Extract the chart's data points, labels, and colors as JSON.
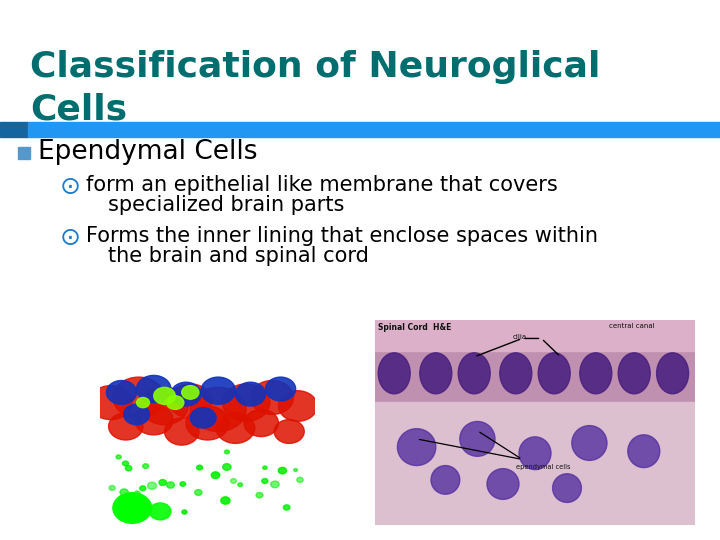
{
  "title_line1": "Classification of Neuroglical",
  "title_line2": "Cells",
  "title_color": "#006e6e",
  "title_fontsize": 26,
  "divider_color_dark": "#1565a0",
  "divider_color_light": "#2196f3",
  "bg_color": "#ffffff",
  "bullet1_text": "Ependymal Cells",
  "bullet1_color": "#000000",
  "bullet1_fontsize": 19,
  "bullet1_marker_color": "#5599cc",
  "sub_bullet_symbol": "⊙",
  "sub_bullet_color": "#1a7acc",
  "sub_bullet_fontsize": 15,
  "sub1_line1": "form an epithelial like membrane that covers",
  "sub1_line2": "specialized brain parts",
  "sub2_line1": "Forms the inner lining that enclose spaces within",
  "sub2_line2": "the brain and spinal cord",
  "sub_text_color": "#000000"
}
